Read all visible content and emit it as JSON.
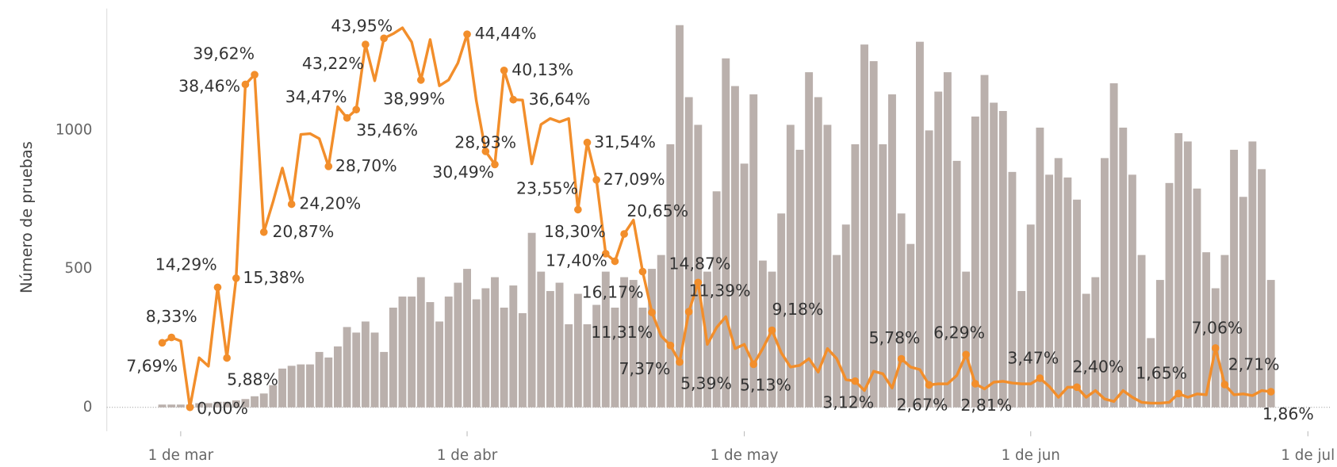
{
  "chart_data": {
    "type": "combo",
    "ylabel": "Número de pruebas",
    "categories": [
      null,
      null,
      "1 de mar",
      null,
      null,
      null,
      null,
      null,
      null,
      null,
      null,
      null,
      null,
      null,
      null,
      null,
      null,
      null,
      null,
      null,
      null,
      null,
      null,
      null,
      null,
      null,
      null,
      null,
      null,
      null,
      null,
      null,
      null,
      "1 de abr",
      null,
      null,
      null,
      null,
      null,
      null,
      null,
      null,
      null,
      null,
      null,
      null,
      null,
      null,
      null,
      null,
      null,
      null,
      null,
      null,
      null,
      null,
      null,
      null,
      null,
      null,
      null,
      null,
      null,
      "1 de may",
      null,
      null,
      null,
      null,
      null,
      null,
      null,
      null,
      null,
      null,
      null,
      null,
      null,
      null,
      null,
      null,
      null,
      null,
      null,
      null,
      null,
      null,
      null,
      null,
      null,
      null,
      null,
      null,
      null,
      null,
      "1 de jun",
      null,
      null,
      null,
      null,
      null,
      null,
      null,
      null,
      null,
      null,
      null,
      null,
      null,
      null,
      null,
      null,
      null,
      null,
      null,
      null,
      null,
      null,
      null,
      null,
      null,
      null,
      null,
      null,
      null,
      "1 de jul"
    ],
    "series": [
      {
        "type": "bar",
        "color": "#bab0ac",
        "values": [
          10,
          10,
          10,
          10,
          15,
          15,
          20,
          20,
          25,
          30,
          40,
          50,
          80,
          140,
          150,
          155,
          155,
          200,
          180,
          220,
          290,
          270,
          310,
          270,
          200,
          360,
          400,
          400,
          470,
          380,
          310,
          400,
          450,
          500,
          390,
          430,
          470,
          360,
          440,
          340,
          630,
          490,
          420,
          450,
          300,
          410,
          300,
          370,
          490,
          360,
          470,
          460,
          360,
          500,
          550,
          950,
          1380,
          1120,
          1020,
          490,
          780,
          1260,
          1160,
          880,
          1130,
          530,
          490,
          700,
          1020,
          930,
          1210,
          1120,
          1020,
          550,
          660,
          950,
          1310,
          1250,
          950,
          1130,
          700,
          590,
          1320,
          1000,
          1140,
          1210,
          890,
          490,
          1050,
          1200,
          1100,
          1070,
          850,
          420,
          660,
          1010,
          840,
          900,
          830,
          750,
          410,
          470,
          900,
          1170,
          1010,
          840,
          550,
          250,
          460,
          810,
          990,
          960,
          790,
          560,
          430,
          550,
          930,
          760,
          960,
          860,
          460,
          null,
          null,
          null,
          null
        ]
      },
      {
        "type": "line",
        "axis": "y2",
        "color": "#f28e2b",
        "values": [
          7.69,
          8.33,
          7.9,
          0.0,
          5.9,
          4.9,
          14.29,
          5.88,
          15.38,
          38.46,
          39.62,
          20.87,
          24.5,
          28.5,
          24.2,
          32.5,
          32.6,
          32.0,
          28.7,
          35.8,
          34.47,
          35.46,
          43.22,
          38.9,
          43.95,
          44.5,
          45.2,
          43.5,
          38.99,
          43.8,
          38.3,
          39.0,
          41.0,
          44.44,
          36.5,
          30.49,
          28.93,
          40.13,
          36.64,
          36.6,
          29.0,
          33.7,
          34.4,
          34.0,
          34.4,
          23.55,
          31.54,
          27.09,
          18.3,
          17.4,
          20.65,
          22.3,
          16.17,
          11.31,
          8.5,
          7.37,
          5.39,
          11.39,
          14.87,
          7.5,
          9.5,
          10.8,
          7.0,
          7.5,
          5.13,
          7.0,
          9.18,
          6.5,
          4.8,
          5.0,
          5.8,
          4.2,
          7.0,
          5.8,
          3.3,
          3.12,
          2.0,
          4.3,
          4.0,
          2.3,
          5.78,
          4.8,
          4.5,
          2.67,
          2.8,
          2.8,
          3.8,
          6.29,
          2.81,
          2.2,
          3.0,
          3.1,
          2.9,
          2.8,
          2.8,
          3.47,
          2.5,
          1.2,
          2.4,
          2.4,
          1.2,
          2.0,
          1.0,
          0.7,
          2.0,
          1.2,
          0.6,
          0.5,
          0.5,
          0.6,
          1.65,
          1.2,
          1.6,
          1.5,
          7.06,
          2.71,
          1.5,
          1.6,
          1.4,
          2.0,
          1.86,
          null,
          null,
          null,
          null
        ],
        "value_labels": [
          "7,69%",
          "8,33%",
          null,
          "0,00%",
          null,
          null,
          "14,29%",
          "5,88%",
          "15,38%",
          "38,46%",
          "39,62%",
          "20,87%",
          null,
          null,
          "24,20%",
          null,
          null,
          null,
          "28,70%",
          null,
          "34,47%",
          "35,46%",
          "43,22%",
          null,
          "43,95%",
          null,
          null,
          null,
          "38,99%",
          null,
          null,
          null,
          null,
          "44,44%",
          null,
          "30,49%",
          "28,93%",
          "40,13%",
          "36,64%",
          null,
          null,
          null,
          null,
          null,
          null,
          "23,55%",
          "31,54%",
          "27,09%",
          "18,30%",
          "17,40%",
          "20,65%",
          null,
          "16,17%",
          "11,31%",
          null,
          "7,37%",
          "5,39%",
          "11,39%",
          "14,87%",
          null,
          null,
          null,
          null,
          null,
          "5,13%",
          null,
          "9,18%",
          null,
          null,
          null,
          null,
          null,
          null,
          null,
          null,
          "3,12%",
          null,
          null,
          null,
          null,
          "5,78%",
          null,
          null,
          "2,67%",
          null,
          null,
          null,
          "6,29%",
          "2,81%",
          null,
          null,
          null,
          null,
          null,
          null,
          "3,47%",
          null,
          null,
          null,
          "2,40%",
          null,
          null,
          null,
          null,
          null,
          null,
          null,
          null,
          null,
          null,
          "1,65%",
          null,
          null,
          null,
          "7,06%",
          "2,71%",
          null,
          null,
          null,
          null,
          "1,86%",
          null,
          null,
          null,
          null
        ]
      }
    ],
    "ylim": [
      0,
      1440
    ],
    "yticks": [
      0,
      500,
      1000
    ],
    "y2lim": [
      0,
      47.5
    ]
  }
}
